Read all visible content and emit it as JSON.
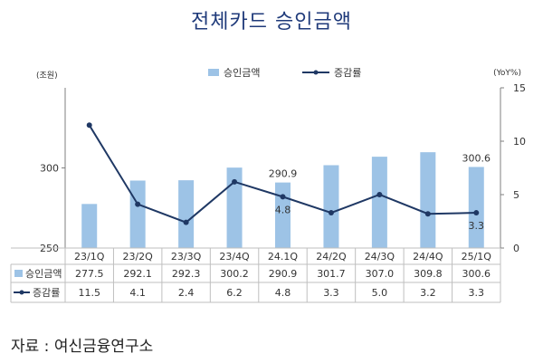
{
  "title": "전체카드 승인금액",
  "units": {
    "left": "(조원)",
    "right": "(YoY%)"
  },
  "legend": {
    "bar": "승인금액",
    "line": "증감률"
  },
  "source": "자료 : 여신금융연구소",
  "colors": {
    "bar": "#9dc3e6",
    "line": "#1f3864",
    "axis": "#7f7f7f",
    "table_border": "#bfbfbf"
  },
  "chart_data": {
    "type": "bar",
    "categories": [
      "23/1Q",
      "23/2Q",
      "23/3Q",
      "23/4Q",
      "24.1Q",
      "24/2Q",
      "24/3Q",
      "24/4Q",
      "25/1Q"
    ],
    "series": [
      {
        "name": "승인금액",
        "type": "bar",
        "axis": "left",
        "values": [
          277.5,
          292.1,
          292.3,
          300.2,
          290.9,
          301.7,
          307.0,
          309.8,
          300.6
        ]
      },
      {
        "name": "증감률",
        "type": "line",
        "axis": "right",
        "values": [
          11.5,
          4.1,
          2.4,
          6.2,
          4.8,
          3.3,
          5.0,
          3.2,
          3.3
        ]
      }
    ],
    "y_left": {
      "ylim": [
        250,
        350
      ],
      "ticks": [
        "250",
        "300"
      ]
    },
    "y_right": {
      "ylim": [
        0,
        15
      ],
      "ticks": [
        "0",
        "5",
        "10",
        "15"
      ]
    },
    "annotations": [
      {
        "category": "24.1Q",
        "series": "승인금액",
        "text": "290.9"
      },
      {
        "category": "25/1Q",
        "series": "승인금액",
        "text": "300.6"
      },
      {
        "category": "24.1Q",
        "series": "증감률",
        "text": "4.8"
      },
      {
        "category": "25/1Q",
        "series": "증감률",
        "text": "3.3"
      }
    ],
    "table": {
      "rows": [
        {
          "label": "승인금액",
          "values": [
            "277.5",
            "292.1",
            "292.3",
            "300.2",
            "290.9",
            "301.7",
            "307.0",
            "309.8",
            "300.6"
          ]
        },
        {
          "label": "증감률",
          "values": [
            "11.5",
            "4.1",
            "2.4",
            "6.2",
            "4.8",
            "3.3",
            "5.0",
            "3.2",
            "3.3"
          ]
        }
      ]
    },
    "grid": false,
    "legend_position": "top"
  }
}
